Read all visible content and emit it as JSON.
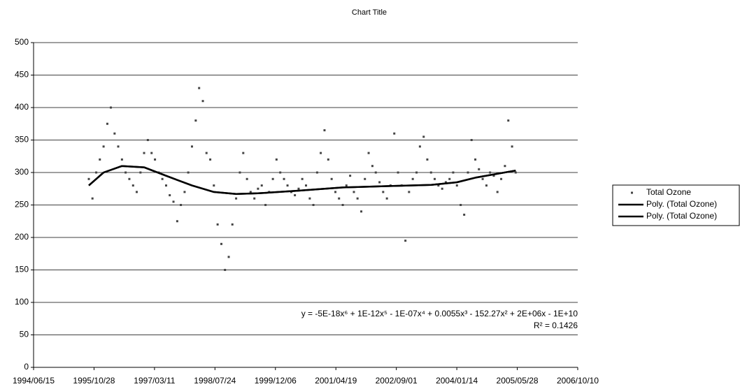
{
  "chart_data": {
    "type": "scatter",
    "title": "Chart Title",
    "annotation": "y = -5E-18x⁶ + 1E-12x⁵ - 1E-07x⁴ + 0.0055x³ - 152.27x² + 2E+06x - 1E+10",
    "annotation_r2": "R² = 0.1426",
    "xlim": [
      "1994/06/15",
      "2006/10/10"
    ],
    "xticks": [
      "1994/06/15",
      "1995/10/28",
      "1997/03/11",
      "1998/07/24",
      "1999/12/06",
      "2001/04/19",
      "2002/09/01",
      "2004/01/14",
      "2005/05/28",
      "2006/10/10"
    ],
    "ylim": [
      0,
      500
    ],
    "yticks": [
      0,
      50,
      100,
      150,
      200,
      250,
      300,
      350,
      400,
      450,
      500
    ],
    "grid": true,
    "legend": "right",
    "series": [
      {
        "name": "Total Ozone",
        "mode": "markers",
        "color": "#444444",
        "x": [
          "1995/09/15",
          "1995/10/15",
          "1995/11/15",
          "1995/12/15",
          "1996/01/15",
          "1996/02/15",
          "1996/03/15",
          "1996/04/15",
          "1996/05/15",
          "1996/06/15",
          "1996/07/15",
          "1996/08/15",
          "1996/09/15",
          "1996/10/15",
          "1996/11/15",
          "1996/12/15",
          "1997/01/15",
          "1997/02/15",
          "1997/03/15",
          "1997/04/15",
          "1997/05/15",
          "1997/06/15",
          "1997/07/15",
          "1997/08/15",
          "1997/09/15",
          "1997/10/15",
          "1997/11/15",
          "1997/12/15",
          "1998/01/15",
          "1998/02/15",
          "1998/03/15",
          "1998/04/15",
          "1998/05/15",
          "1998/06/15",
          "1998/07/15",
          "1998/08/15",
          "1998/09/15",
          "1998/10/15",
          "1998/11/15",
          "1998/12/15",
          "1999/01/15",
          "1999/02/15",
          "1999/03/15",
          "1999/04/15",
          "1999/05/15",
          "1999/06/15",
          "1999/07/15",
          "1999/08/15",
          "1999/09/15",
          "1999/10/15",
          "1999/11/15",
          "1999/12/15",
          "2000/01/15",
          "2000/02/15",
          "2000/03/15",
          "2000/04/15",
          "2000/05/15",
          "2000/06/15",
          "2000/07/15",
          "2000/08/15",
          "2000/09/15",
          "2000/10/15",
          "2000/11/15",
          "2000/12/15",
          "2001/01/15",
          "2001/02/15",
          "2001/03/15",
          "2001/04/15",
          "2001/05/15",
          "2001/06/15",
          "2001/07/15",
          "2001/08/15",
          "2001/09/15",
          "2001/10/15",
          "2001/11/15",
          "2001/12/15",
          "2002/01/15",
          "2002/02/15",
          "2002/03/15",
          "2002/04/15",
          "2002/05/15",
          "2002/06/15",
          "2002/07/15",
          "2002/08/15",
          "2002/09/15",
          "2002/10/15",
          "2002/11/15",
          "2002/12/15",
          "2003/01/15",
          "2003/02/15",
          "2003/03/15",
          "2003/04/15",
          "2003/05/15",
          "2003/06/15",
          "2003/07/15",
          "2003/08/15",
          "2003/09/15",
          "2003/10/15",
          "2003/11/15",
          "2003/12/15",
          "2004/01/15",
          "2004/02/15",
          "2004/03/15",
          "2004/04/15",
          "2004/05/15",
          "2004/06/15",
          "2004/07/15",
          "2004/08/15",
          "2004/09/15",
          "2004/10/15",
          "2004/11/15",
          "2004/12/15",
          "2005/01/15",
          "2005/02/15",
          "2005/03/15",
          "2005/04/15",
          "2005/05/15"
        ],
        "values": [
          290,
          260,
          300,
          320,
          340,
          375,
          400,
          360,
          340,
          320,
          300,
          290,
          280,
          270,
          300,
          330,
          350,
          330,
          320,
          300,
          290,
          280,
          265,
          255,
          225,
          250,
          270,
          300,
          340,
          380,
          430,
          410,
          330,
          320,
          280,
          220,
          190,
          150,
          170,
          220,
          260,
          300,
          330,
          290,
          270,
          260,
          275,
          280,
          250,
          270,
          290,
          320,
          300,
          290,
          280,
          270,
          265,
          275,
          290,
          280,
          260,
          250,
          300,
          330,
          365,
          320,
          290,
          270,
          260,
          250,
          280,
          295,
          270,
          260,
          240,
          290,
          330,
          310,
          300,
          285,
          270,
          260,
          280,
          360,
          300,
          280,
          195,
          270,
          290,
          300,
          340,
          355,
          320,
          300,
          290,
          280,
          275,
          285,
          290,
          300,
          280,
          250,
          235,
          300,
          350,
          320,
          305,
          290,
          280,
          300,
          295,
          270,
          290,
          310,
          380,
          340,
          300
        ]
      },
      {
        "name": "Poly. (Total Ozone)",
        "mode": "line",
        "color": "#000000",
        "x": [
          "1995/09/15",
          "1996/01/15",
          "1996/06/15",
          "1996/12/15",
          "1997/06/15",
          "1998/01/15",
          "1998/07/15",
          "1999/01/15",
          "1999/07/15",
          "2000/06/15",
          "2001/06/15",
          "2002/06/15",
          "2003/06/15",
          "2004/01/15",
          "2004/06/15",
          "2005/05/15"
        ],
        "values": [
          280,
          300,
          310,
          308,
          295,
          280,
          270,
          267,
          268,
          272,
          277,
          279,
          281,
          285,
          292,
          303
        ]
      },
      {
        "name": "Poly. (Total Ozone)",
        "mode": "line",
        "color": "#000000",
        "x": [
          "1995/09/15",
          "1996/01/15",
          "1996/06/15",
          "1996/12/15",
          "1997/06/15",
          "1998/01/15",
          "1998/07/15",
          "1999/01/15",
          "1999/07/15",
          "2000/06/15",
          "2001/06/15",
          "2002/06/15",
          "2003/06/15",
          "2004/01/15",
          "2004/06/15",
          "2005/05/15"
        ],
        "values": [
          280,
          300,
          310,
          308,
          295,
          280,
          270,
          267,
          268,
          272,
          277,
          279,
          281,
          285,
          292,
          303
        ]
      }
    ]
  }
}
